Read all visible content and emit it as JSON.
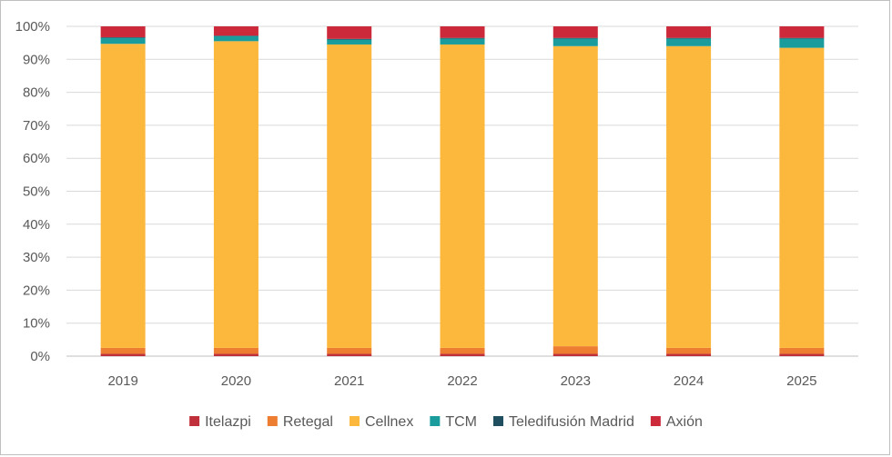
{
  "chart_data": {
    "type": "bar",
    "stacked": true,
    "percent": true,
    "categories": [
      "2019",
      "2020",
      "2021",
      "2022",
      "2023",
      "2024",
      "2025"
    ],
    "series": [
      {
        "name": "Itelazpi",
        "color": "#c0303a",
        "values": [
          0.7,
          0.7,
          0.7,
          0.7,
          0.7,
          0.7,
          0.7
        ]
      },
      {
        "name": "Retegal",
        "color": "#ed7d31",
        "values": [
          1.8,
          1.8,
          1.8,
          1.8,
          2.3,
          1.8,
          1.8
        ]
      },
      {
        "name": "Cellnex",
        "color": "#fbb83c",
        "values": [
          92.2,
          93.0,
          92.0,
          92.0,
          91.0,
          91.5,
          91.0
        ]
      },
      {
        "name": "TCM",
        "color": "#1a9c9c",
        "values": [
          1.8,
          1.5,
          1.5,
          1.8,
          2.3,
          2.3,
          2.8
        ]
      },
      {
        "name": "Teledifusión Madrid",
        "color": "#1f4e5f",
        "values": [
          0.2,
          0.2,
          0.2,
          0.2,
          0.2,
          0.2,
          0.2
        ]
      },
      {
        "name": "Axión",
        "color": "#cc2a3a",
        "values": [
          3.3,
          2.8,
          3.8,
          3.5,
          3.5,
          3.5,
          3.5
        ]
      }
    ],
    "ylim": [
      0,
      100
    ],
    "yticks": [
      "0%",
      "10%",
      "20%",
      "30%",
      "40%",
      "50%",
      "60%",
      "70%",
      "80%",
      "90%",
      "100%"
    ],
    "grid": true,
    "legend_position": "bottom",
    "title": "",
    "xlabel": "",
    "ylabel": ""
  }
}
